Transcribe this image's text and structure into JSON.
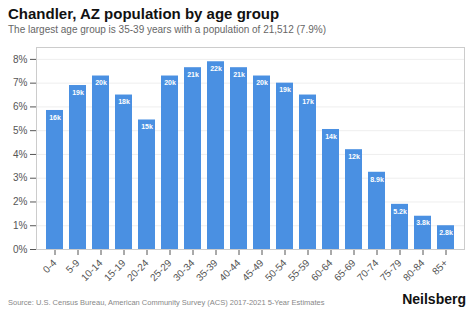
{
  "chart_data": {
    "type": "bar",
    "title": "Chandler, AZ population by age group",
    "subtitle": "The largest age group is 35-39 years with a population of 21,512 (7.9%)",
    "caption": "Source: U.S. Census Bureau, American Community Survey (ACS) 2017-2021 5-Year Estimates",
    "brand": "Neilsberg",
    "categories": [
      "0-4",
      "5-9",
      "10-14",
      "15-19",
      "20-24",
      "25-29",
      "30-34",
      "35-39",
      "40-44",
      "45-49",
      "50-54",
      "55-59",
      "60-64",
      "65-69",
      "70-74",
      "75-79",
      "80-84",
      "85+"
    ],
    "values": [
      5.85,
      6.9,
      7.3,
      6.5,
      5.45,
      7.3,
      7.65,
      7.9,
      7.65,
      7.3,
      7.0,
      6.5,
      5.05,
      4.2,
      3.25,
      1.9,
      1.4,
      1.0
    ],
    "labels": [
      "16k",
      "19k",
      "20k",
      "18k",
      "15k",
      "20k",
      "21k",
      "22k",
      "21k",
      "20k",
      "19k",
      "17k",
      "14k",
      "12k",
      "8.9k",
      "5.2k",
      "3.8k",
      "2.8k"
    ],
    "color": "#4a90e2",
    "ylim": [
      0,
      8.5
    ],
    "yticks": [
      {
        "value": 0,
        "label": "0%"
      },
      {
        "value": 1,
        "label": "1%"
      },
      {
        "value": 2,
        "label": "2%"
      },
      {
        "value": 3,
        "label": "3%"
      },
      {
        "value": 4,
        "label": "4%"
      },
      {
        "value": 5,
        "label": "5%"
      },
      {
        "value": 6,
        "label": "6%"
      },
      {
        "value": 7,
        "label": "7%"
      },
      {
        "value": 8,
        "label": "8%"
      }
    ],
    "grid": true
  }
}
